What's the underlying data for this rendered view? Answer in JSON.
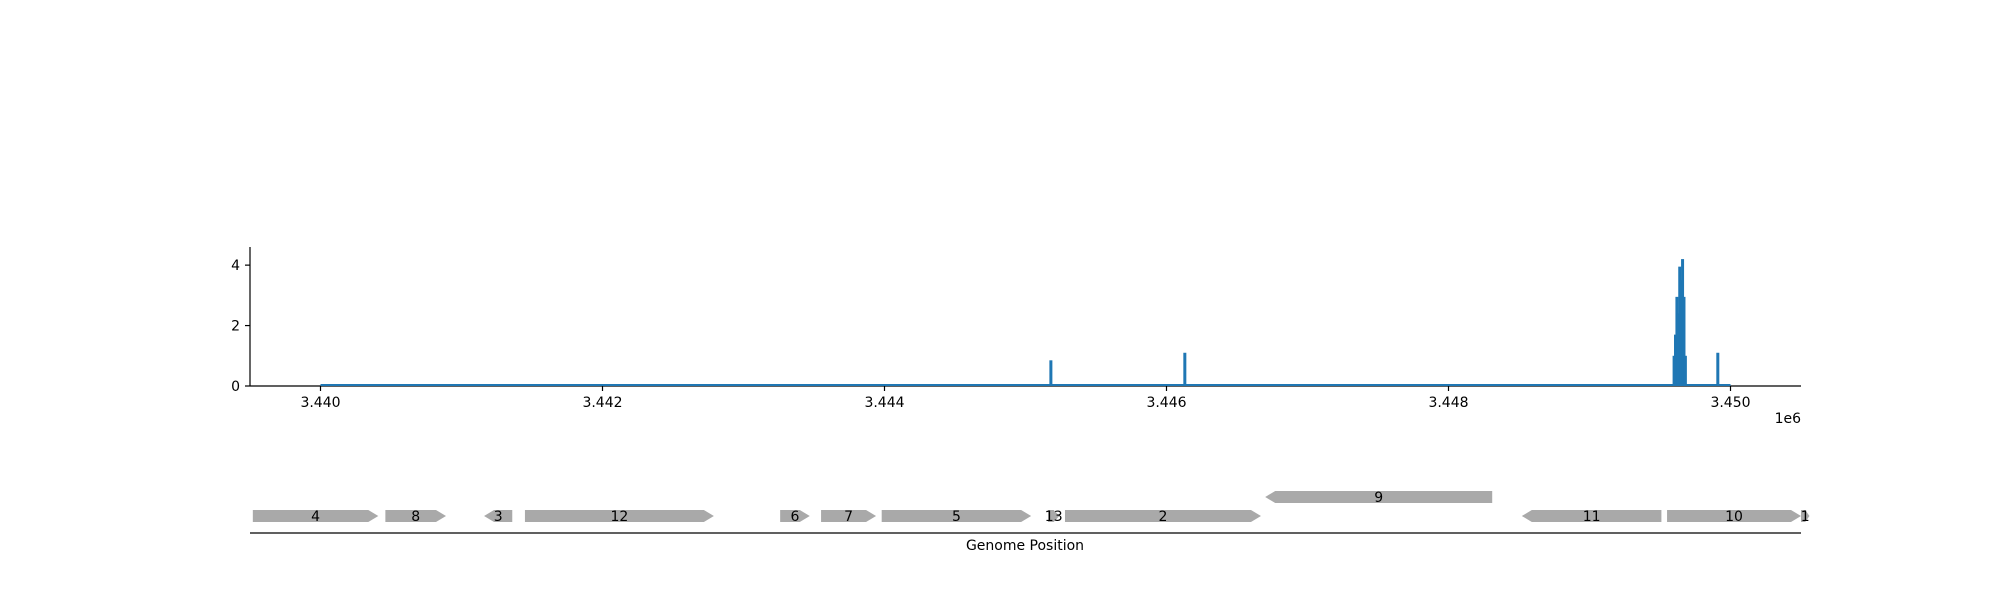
{
  "chart_data": [
    {
      "type": "bar",
      "title": "",
      "xlabel": "",
      "ylabel": "",
      "x_offset_label": "1e6",
      "xlim": [
        3439500,
        3450500
      ],
      "ylim": [
        0,
        4.6
      ],
      "xticks": [
        3440000,
        3442000,
        3444000,
        3446000,
        3448000,
        3450000
      ],
      "xtick_labels": [
        "3.440",
        "3.442",
        "3.444",
        "3.446",
        "3.448",
        "3.450"
      ],
      "yticks": [
        0,
        2,
        4
      ],
      "ytick_labels": [
        "0",
        "2",
        "4"
      ],
      "grid": false,
      "legend": "none",
      "baseline": {
        "x_start": 3440000,
        "x_end": 3450000,
        "value": 0
      },
      "color": "#1f77b4",
      "bars": [
        {
          "x": 3445180,
          "value": 0.85
        },
        {
          "x": 3446130,
          "value": 1.1
        },
        {
          "x": 3449600,
          "value": 1.0
        },
        {
          "x": 3449610,
          "value": 1.7
        },
        {
          "x": 3449620,
          "value": 2.95
        },
        {
          "x": 3449630,
          "value": 2.4
        },
        {
          "x": 3449640,
          "value": 3.95
        },
        {
          "x": 3449650,
          "value": 3.5
        },
        {
          "x": 3449660,
          "value": 4.2
        },
        {
          "x": 3449670,
          "value": 2.95
        },
        {
          "x": 3449680,
          "value": 1.0
        },
        {
          "x": 3449910,
          "value": 1.1
        }
      ]
    },
    {
      "type": "gene-track",
      "xlabel": "Genome Position",
      "xlim": [
        3439500,
        3450500
      ],
      "color": "#a9a9a9",
      "features": [
        {
          "label": "4",
          "start": 3439520,
          "end": 3440410,
          "strand": "+",
          "row": 0
        },
        {
          "label": "8",
          "start": 3440460,
          "end": 3440890,
          "strand": "+",
          "row": 0
        },
        {
          "label": "3",
          "start": 3441160,
          "end": 3441360,
          "strand": "-",
          "row": 0
        },
        {
          "label": "12",
          "start": 3441450,
          "end": 3442790,
          "strand": "+",
          "row": 0
        },
        {
          "label": "6",
          "start": 3443260,
          "end": 3443470,
          "strand": "+",
          "row": 0
        },
        {
          "label": "7",
          "start": 3443550,
          "end": 3443940,
          "strand": "+",
          "row": 0
        },
        {
          "label": "5",
          "start": 3443980,
          "end": 3445040,
          "strand": "+",
          "row": 0
        },
        {
          "label": "13",
          "start": 3445160,
          "end": 3445240,
          "strand": "+",
          "row": 0
        },
        {
          "label": "2",
          "start": 3445280,
          "end": 3446670,
          "strand": "+",
          "row": 0
        },
        {
          "label": "9",
          "start": 3446700,
          "end": 3448310,
          "strand": "-",
          "row": 1
        },
        {
          "label": "11",
          "start": 3448520,
          "end": 3449510,
          "strand": "-",
          "row": 0
        },
        {
          "label": "10",
          "start": 3449550,
          "end": 3450500,
          "strand": "+",
          "row": 0
        },
        {
          "label": "1",
          "start": 3450500,
          "end": 3450560,
          "strand": "+",
          "row": 0
        }
      ]
    }
  ]
}
